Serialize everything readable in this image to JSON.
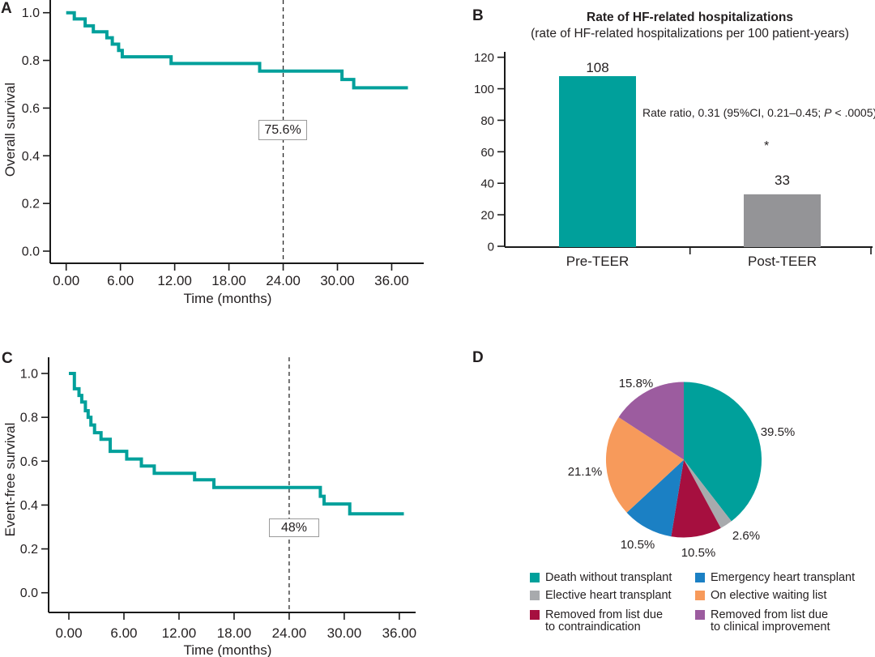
{
  "figure": {
    "background": "#ffffff",
    "text_color": "#231f20",
    "accent_teal": "#00a09b"
  },
  "panels": {
    "a": {
      "label": "A",
      "ylabel": "Overall survival",
      "xlabel": "Time (months)",
      "annotation": "75.6%"
    },
    "b": {
      "label": "B",
      "title": "Rate of HF-related hospitalizations",
      "subtitle": "(rate of HF-related hospitalizations per 100 patient-years)",
      "annotation_before_p": "Rate ratio, 0.31 (95%CI, 0.21–0.45; ",
      "annotation_p": "P",
      "annotation_after_p": " < .0005)",
      "significance": "*"
    },
    "c": {
      "label": "C",
      "ylabel": "Event-free survival",
      "xlabel": "Time (months)",
      "annotation": "48%"
    },
    "d": {
      "label": "D"
    }
  },
  "chart_data": [
    {
      "id": "A",
      "type": "line",
      "subtype": "kaplan_meier_step",
      "title": "",
      "ylabel": "Overall survival",
      "xlabel": "Time (months)",
      "x_ticks": [
        0,
        6,
        12,
        18,
        24,
        30,
        36
      ],
      "x_tick_labels": [
        "0.00",
        "6.00",
        "12.00",
        "18.00",
        "24.00",
        "30.00",
        "36.00"
      ],
      "y_ticks": [
        0,
        0.2,
        0.4,
        0.6,
        0.8,
        1.0
      ],
      "y_tick_labels": [
        "0.0",
        "0.2",
        "0.4",
        "0.6",
        "0.8",
        "1.0"
      ],
      "xlim": [
        -1.8,
        39.5
      ],
      "ylim": [
        -0.05,
        1.05
      ],
      "grid": false,
      "reference_line_x": 24,
      "annotation": {
        "text": "75.6%",
        "x": 24,
        "y": 0.51
      },
      "series": [
        {
          "name": "Overall survival",
          "color": "#00a09b",
          "steps": [
            [
              0,
              1.0
            ],
            [
              0.9,
              0.974
            ],
            [
              2.1,
              0.945
            ],
            [
              3.0,
              0.92
            ],
            [
              4.5,
              0.895
            ],
            [
              5.1,
              0.868
            ],
            [
              5.8,
              0.842
            ],
            [
              6.2,
              0.815
            ],
            [
              11.6,
              0.787
            ],
            [
              21.4,
              0.755
            ],
            [
              30.5,
              0.72
            ],
            [
              31.8,
              0.685
            ],
            [
              37.8,
              0.685
            ]
          ]
        }
      ]
    },
    {
      "id": "B",
      "type": "bar",
      "title": "Rate of HF-related hospitalizations",
      "subtitle": "(rate of HF-related hospitalizations per 100 patient-years)",
      "categories": [
        "Pre-TEER",
        "Post-TEER"
      ],
      "values": [
        108,
        33
      ],
      "bar_colors": [
        "#00a09b",
        "#949497"
      ],
      "ylim": [
        0,
        120
      ],
      "y_ticks": [
        0,
        20,
        40,
        60,
        80,
        100,
        120
      ],
      "annotation": "Rate ratio, 0.31 (95%CI, 0.21–0.45; P < .0005)",
      "significance_marker": "*",
      "grid": false,
      "legend_position": "none"
    },
    {
      "id": "C",
      "type": "line",
      "subtype": "kaplan_meier_step",
      "title": "",
      "ylabel": "Event-free survival",
      "xlabel": "Time (months)",
      "x_ticks": [
        0,
        6,
        12,
        18,
        24,
        30,
        36
      ],
      "x_tick_labels": [
        "0.00",
        "6.00",
        "12.00",
        "18.00",
        "24.00",
        "30.00",
        "36.00"
      ],
      "y_ticks": [
        0,
        0.2,
        0.4,
        0.6,
        0.8,
        1.0
      ],
      "y_tick_labels": [
        "0.0",
        "0.2",
        "0.4",
        "0.6",
        "0.8",
        "1.0"
      ],
      "xlim": [
        -2,
        39.5
      ],
      "ylim": [
        -0.09,
        1.07
      ],
      "grid": false,
      "reference_line_x": 24,
      "annotation": {
        "text": "48%",
        "x": 24,
        "y": 0.3
      },
      "series": [
        {
          "name": "Event-free survival",
          "color": "#00a09b",
          "steps": [
            [
              0,
              1.0
            ],
            [
              0.6,
              0.93
            ],
            [
              1.1,
              0.9
            ],
            [
              1.4,
              0.87
            ],
            [
              1.8,
              0.83
            ],
            [
              2.1,
              0.8
            ],
            [
              2.4,
              0.765
            ],
            [
              2.8,
              0.73
            ],
            [
              3.5,
              0.7
            ],
            [
              4.5,
              0.645
            ],
            [
              6.3,
              0.61
            ],
            [
              7.9,
              0.578
            ],
            [
              9.3,
              0.545
            ],
            [
              13.7,
              0.515
            ],
            [
              15.8,
              0.48
            ],
            [
              27.4,
              0.44
            ],
            [
              27.8,
              0.405
            ],
            [
              30.6,
              0.36
            ],
            [
              36.5,
              0.36
            ]
          ]
        }
      ]
    },
    {
      "id": "D",
      "type": "pie",
      "start_angle_deg": 0,
      "direction": "clockwise",
      "slices": [
        {
          "label": "Death without transplant",
          "value": 39.5,
          "pct_label": "39.5%",
          "color": "#00a09b"
        },
        {
          "label": "Elective heart transplant",
          "value": 2.6,
          "pct_label": "2.6%",
          "color": "#a8aaad"
        },
        {
          "label": "Removed from list due to contraindication",
          "value": 10.5,
          "pct_label": "10.5%",
          "color": "#a60f3f"
        },
        {
          "label": "Emergency heart transplant",
          "value": 10.5,
          "pct_label": "10.5%",
          "color": "#1b80c4"
        },
        {
          "label": "On elective waiting list",
          "value": 21.1,
          "pct_label": "21.1%",
          "color": "#f79a5b"
        },
        {
          "label": "Removed from list due to clinical improvement",
          "value": 15.8,
          "pct_label": "15.8%",
          "color": "#9c5c9f"
        }
      ],
      "legend_columns": [
        [
          {
            "lines": [
              "Death without transplant"
            ],
            "color": "#00a09b"
          },
          {
            "lines": [
              "Elective heart transplant"
            ],
            "color": "#a8aaad"
          },
          {
            "lines": [
              "Removed from list due",
              "to contraindication"
            ],
            "color": "#a60f3f"
          }
        ],
        [
          {
            "lines": [
              "Emergency heart transplant"
            ],
            "color": "#1b80c4"
          },
          {
            "lines": [
              "On elective waiting list"
            ],
            "color": "#f79a5b"
          },
          {
            "lines": [
              "Removed from list due",
              "to clinical improvement"
            ],
            "color": "#9c5c9f"
          }
        ]
      ]
    }
  ]
}
